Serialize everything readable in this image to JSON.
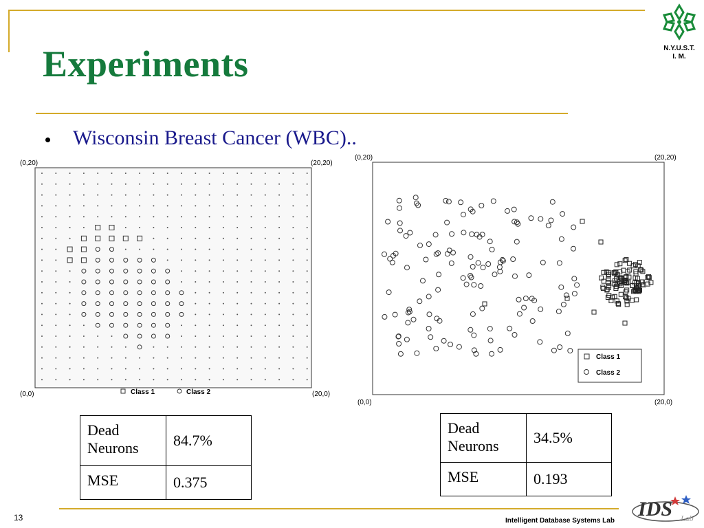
{
  "header": {
    "title": "Experiments",
    "logo_text_line1": "N.Y.U.S.T.",
    "logo_text_line2": "I. M.",
    "colors": {
      "title": "#157a3c",
      "rule": "#d4aa2a",
      "bullet_text": "#1a1a8c"
    }
  },
  "bullet": {
    "text": "Wisconsin Breast Cancer (WBC).."
  },
  "left_plot": {
    "corner_top_left": "(0,20)",
    "corner_top_right": "(20,20)",
    "corner_bottom_left": "(0,0)",
    "corner_bottom_right": "(20,0)",
    "legend_class1": "Class 1",
    "legend_class2": "Class 2"
  },
  "right_plot": {
    "corner_top_left": "(0,20)",
    "corner_top_right": "(20,20)",
    "corner_bottom_left": "(0,0)",
    "corner_bottom_right": "(20,0)",
    "legend_class1": "Class 1",
    "legend_class2": "Class 2"
  },
  "table_left": {
    "row1_label": "Dead Neurons",
    "row1_value": "84.7%",
    "row2_label": "MSE",
    "row2_value": "0.375"
  },
  "table_right": {
    "row1_label": "Dead Neurons",
    "row1_value": "34.5%",
    "row2_label": "MSE",
    "row2_value": "0.193"
  },
  "footer": {
    "page_number": "13",
    "lab_name": "Intelligent Database Systems Lab",
    "ids_logo_text": "IDS",
    "ids_logo_small": "Lab"
  }
}
